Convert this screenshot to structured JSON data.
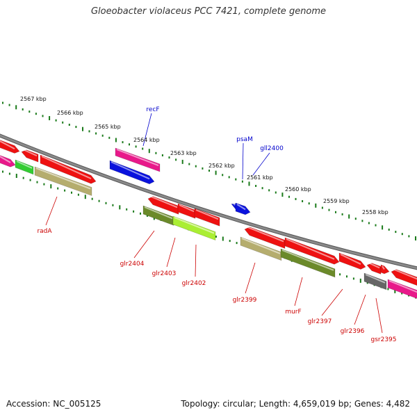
{
  "title": "Gloeobacter violaceus PCC 7421, complete genome",
  "footer": {
    "accession": "Accession: NC_005125",
    "summary": "Topology: circular; Length: 4,659,019 bp; Genes: 4,482"
  },
  "colors": {
    "backbone": "#8a8a8a",
    "tick": "#1a7a1a",
    "top_label": "#0000cc",
    "bottom_label": "#cc0000",
    "gene_red": "#ee1111",
    "gene_pink": "#e8198a",
    "gene_blue": "#0a12dd",
    "gene_green": "#33cc33",
    "gene_khaki": "#b5ad6e",
    "gene_olive": "#6b8a2a",
    "gene_lime": "#aaee33",
    "gene_grey": "#666666"
  },
  "kbp_labels": [
    "2567 kbp",
    "2566 kbp",
    "2565 kbp",
    "2564 kbp",
    "2563 kbp",
    "2562 kbp",
    "2561 kbp",
    "2560 kbp",
    "2559 kbp",
    "2558 kbp"
  ],
  "genes_top": [
    "recF",
    "psaM",
    "gll2400"
  ],
  "genes_bottom": [
    "radA",
    "glr2404",
    "glr2403",
    "glr2402",
    "glr2399",
    "murF",
    "glr2397",
    "glr2396",
    "gsr2395"
  ]
}
